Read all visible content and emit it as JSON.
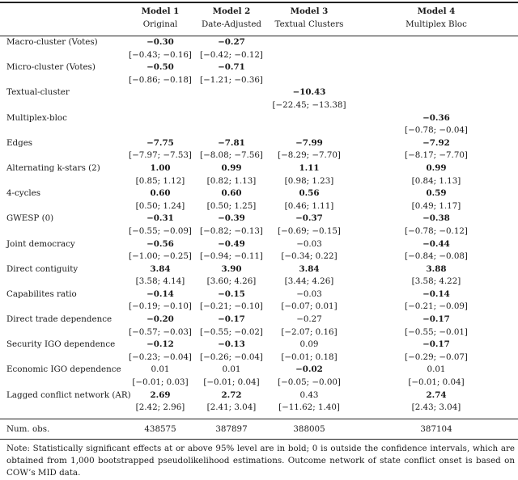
{
  "header": {
    "models": [
      {
        "name": "Model 1",
        "sub": "Original"
      },
      {
        "name": "Model 2",
        "sub": "Date-Adjusted"
      },
      {
        "name": "Model 3",
        "sub": "Textual Clusters"
      },
      {
        "name": "Model 4",
        "sub": "Multiplex Bloc"
      }
    ]
  },
  "rows": [
    {
      "label": "Macro-cluster (Votes)",
      "cells": [
        {
          "est": "−0.30",
          "ci": "[−0.43; −0.16]",
          "bold": true
        },
        {
          "est": "−0.27",
          "ci": "[−0.42; −0.12]",
          "bold": true
        },
        null,
        null
      ]
    },
    {
      "label": "Micro-cluster (Votes)",
      "cells": [
        {
          "est": "−0.50",
          "ci": "[−0.86; −0.18]",
          "bold": true
        },
        {
          "est": "−0.71",
          "ci": "[−1.21; −0.36]",
          "bold": true
        },
        null,
        null
      ]
    },
    {
      "label": "Textual-cluster",
      "cells": [
        null,
        null,
        {
          "est": "−10.43",
          "ci": "[−22.45; −13.38]",
          "bold": true
        },
        null
      ]
    },
    {
      "label": "Multiplex-bloc",
      "cells": [
        null,
        null,
        null,
        {
          "est": "−0.36",
          "ci": "[−0.78; −0.04]",
          "bold": true
        }
      ]
    },
    {
      "label": "Edges",
      "cells": [
        {
          "est": "−7.75",
          "ci": "[−7.97; −7.53]",
          "bold": true
        },
        {
          "est": "−7.81",
          "ci": "[−8.08; −7.56]",
          "bold": true
        },
        {
          "est": "−7.99",
          "ci": "[−8.29; −7.70]",
          "bold": true
        },
        {
          "est": "−7.92",
          "ci": "[−8.17; −7.70]",
          "bold": true
        }
      ]
    },
    {
      "label": "Alternating k-stars (2)",
      "cells": [
        {
          "est": "1.00",
          "ci": "[0.85; 1.12]",
          "bold": true
        },
        {
          "est": "0.99",
          "ci": "[0.82; 1.13]",
          "bold": true
        },
        {
          "est": "1.11",
          "ci": "[0.98; 1.23]",
          "bold": true
        },
        {
          "est": "0.99",
          "ci": "[0.84; 1.13]",
          "bold": true
        }
      ]
    },
    {
      "label": "4-cycles",
      "cells": [
        {
          "est": "0.60",
          "ci": "[0.50; 1.24]",
          "bold": true
        },
        {
          "est": "0.60",
          "ci": "[0.50; 1.25]",
          "bold": true
        },
        {
          "est": "0.56",
          "ci": "[0.46; 1.11]",
          "bold": true
        },
        {
          "est": "0.59",
          "ci": "[0.49; 1.17]",
          "bold": true
        }
      ]
    },
    {
      "label": "GWESP (0)",
      "cells": [
        {
          "est": "−0.31",
          "ci": "[−0.55; −0.09]",
          "bold": true
        },
        {
          "est": "−0.39",
          "ci": "[−0.82; −0.13]",
          "bold": true
        },
        {
          "est": "−0.37",
          "ci": "[−0.69; −0.15]",
          "bold": true
        },
        {
          "est": "−0.38",
          "ci": "[−0.78; −0.12]",
          "bold": true
        }
      ]
    },
    {
      "label": "Joint democracy",
      "cells": [
        {
          "est": "−0.56",
          "ci": "[−1.00; −0.25]",
          "bold": true
        },
        {
          "est": "−0.49",
          "ci": "[−0.94; −0.11]",
          "bold": true
        },
        {
          "est": "−0.03",
          "ci": "[−0.34; 0.22]",
          "bold": false
        },
        {
          "est": "−0.44",
          "ci": "[−0.84; −0.08]",
          "bold": true
        }
      ]
    },
    {
      "label": "Direct contiguity",
      "cells": [
        {
          "est": "3.84",
          "ci": "[3.58; 4.14]",
          "bold": true
        },
        {
          "est": "3.90",
          "ci": "[3.60; 4.26]",
          "bold": true
        },
        {
          "est": "3.84",
          "ci": "[3.44; 4.26]",
          "bold": true
        },
        {
          "est": "3.88",
          "ci": "[3.58; 4.22]",
          "bold": true
        }
      ]
    },
    {
      "label": "Capabilites ratio",
      "cells": [
        {
          "est": "−0.14",
          "ci": "[−0.19; −0.10]",
          "bold": true
        },
        {
          "est": "−0.15",
          "ci": "[−0.21; −0.10]",
          "bold": true
        },
        {
          "est": "−0.03",
          "ci": "[−0.07; 0.01]",
          "bold": false
        },
        {
          "est": "−0.14",
          "ci": "[−0.21; −0.09]",
          "bold": true
        }
      ]
    },
    {
      "label": "Direct trade dependence",
      "cells": [
        {
          "est": "−0.20",
          "ci": "[−0.57; −0.03]",
          "bold": true
        },
        {
          "est": "−0.17",
          "ci": "[−0.55; −0.02]",
          "bold": true
        },
        {
          "est": "−0.27",
          "ci": "[−2.07; 0.16]",
          "bold": false
        },
        {
          "est": "−0.17",
          "ci": "[−0.55; −0.01]",
          "bold": true
        }
      ]
    },
    {
      "label": "Security IGO dependence",
      "cells": [
        {
          "est": "−0.12",
          "ci": "[−0.23; −0.04]",
          "bold": true
        },
        {
          "est": "−0.13",
          "ci": "[−0.26; −0.04]",
          "bold": true
        },
        {
          "est": "0.09",
          "ci": "[−0.01; 0.18]",
          "bold": false
        },
        {
          "est": "−0.17",
          "ci": "[−0.29; −0.07]",
          "bold": true
        }
      ]
    },
    {
      "label": "Economic IGO dependence",
      "cells": [
        {
          "est": "0.01",
          "ci": "[−0.01; 0.03]",
          "bold": false
        },
        {
          "est": "0.01",
          "ci": "[−0.01; 0.04]",
          "bold": false
        },
        {
          "est": "−0.02",
          "ci": "[−0.05; −0.00]",
          "bold": true
        },
        {
          "est": "0.01",
          "ci": "[−0.01; 0.04]",
          "bold": false
        }
      ]
    },
    {
      "label": "Lagged conflict network (AR)",
      "cells": [
        {
          "est": "2.69",
          "ci": "[2.42; 2.96]",
          "bold": true
        },
        {
          "est": "2.72",
          "ci": "[2.41; 3.04]",
          "bold": true
        },
        {
          "est": "0.43",
          "ci": "[−11.62; 1.40]",
          "bold": false
        },
        {
          "est": "2.74",
          "ci": "[2.43; 3.04]",
          "bold": true
        }
      ]
    }
  ],
  "footer": {
    "label": "Num. obs.",
    "values": [
      "438575",
      "387897",
      "388005",
      "387104"
    ]
  },
  "note": "Note: Statistically significant effects at or above 95% level are in bold; 0 is outside the confidence intervals, which are obtained from 1,000 bootstrapped pseudolikelihood estimations. Outcome network of state conflict onset is based on COW’s MID data."
}
